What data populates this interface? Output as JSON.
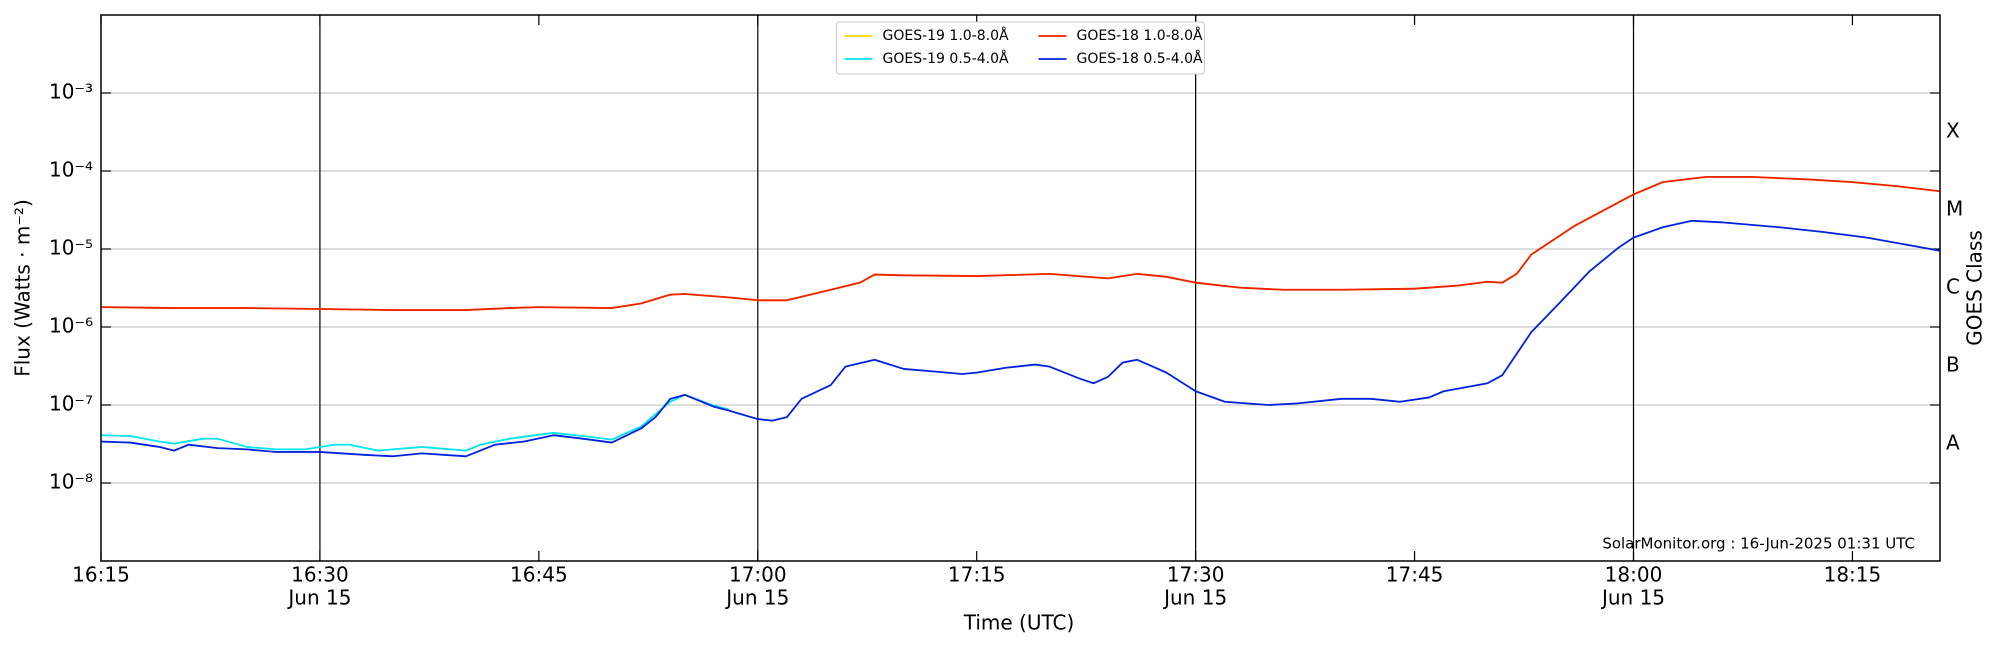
{
  "chart_data": {
    "type": "line",
    "xlabel": "Time (UTC)",
    "ylabel": "Flux (Watts · m⁻²)",
    "y2label": "GOES Class",
    "annotation": "SolarMonitor.org : 16-Jun-2025 01:31 UTC",
    "ylog": true,
    "grid": true,
    "legend": "upper center",
    "xlim": [
      "16:15",
      "18:21"
    ],
    "xticks": [
      "16:15",
      {
        "value": "16:30",
        "label": [
          "16:30",
          "Jun 15"
        ]
      },
      "16:45",
      {
        "value": "17:00",
        "label": [
          "17:00",
          "Jun 15"
        ]
      },
      "17:15",
      {
        "value": "17:30",
        "label": [
          "17:30",
          "Jun 15"
        ]
      },
      "17:45",
      {
        "value": "18:00",
        "label": [
          "18:00",
          "Jun 15"
        ]
      },
      "18:15"
    ],
    "vlines": [
      "16:30",
      "17:00",
      "17:30",
      "18:00"
    ],
    "ylim": [
      1e-09,
      0.01
    ],
    "yticks": [
      {
        "value": 0.001,
        "label": "10⁻³"
      },
      {
        "value": 0.0001,
        "label": "10⁻⁴"
      },
      {
        "value": 1e-05,
        "label": "10⁻⁵"
      },
      {
        "value": 1e-06,
        "label": "10⁻⁶"
      },
      {
        "value": 1e-07,
        "label": "10⁻⁷"
      },
      {
        "value": 1e-08,
        "label": "10⁻⁸"
      }
    ],
    "y2lim": [
      1e-09,
      0.01
    ],
    "y2ticks": [
      {
        "value": 0.0003162,
        "label": "X"
      },
      {
        "value": 3.162e-05,
        "label": "M"
      },
      {
        "value": 3.162e-06,
        "label": "C"
      },
      {
        "value": 3.162e-07,
        "label": "B"
      },
      {
        "value": 3.162e-08,
        "label": "A"
      }
    ],
    "series": [
      {
        "name": "GOES-19 1.0-8.0Å",
        "color": "#ffd700",
        "x": [
          "16:15",
          "16:20",
          "16:25",
          "16:30",
          "16:35",
          "16:40",
          "16:43",
          "16:45",
          "16:50",
          "16:52",
          "16:54",
          "16:55",
          "16:58",
          "17:00",
          "17:02",
          "17:05",
          "17:07",
          "17:08",
          "17:10",
          "17:15",
          "17:20",
          "17:24",
          "17:26",
          "17:28",
          "17:30",
          "17:33",
          "17:36",
          "17:40",
          "17:45",
          "17:48",
          "17:50",
          "17:51",
          "17:52",
          "17:53",
          "17:56",
          "18:00",
          "18:02",
          "18:05",
          "18:08",
          "18:12",
          "18:15",
          "18:18",
          "18:21"
        ],
        "values": [
          1.8e-06,
          1.75e-06,
          1.75e-06,
          1.7e-06,
          1.65e-06,
          1.65e-06,
          1.75e-06,
          1.8e-06,
          1.75e-06,
          2e-06,
          2.6e-06,
          2.65e-06,
          2.4e-06,
          2.2e-06,
          2.2e-06,
          3e-06,
          3.7e-06,
          4.7e-06,
          4.6e-06,
          4.5e-06,
          4.8e-06,
          4.2e-06,
          4.8e-06,
          4.4e-06,
          3.7e-06,
          3.2e-06,
          3e-06,
          3e-06,
          3.1e-06,
          3.4e-06,
          3.8e-06,
          3.7e-06,
          4.8e-06,
          8.5e-06,
          2e-05,
          5e-05,
          7.2e-05,
          8.4e-05,
          8.4e-05,
          7.8e-05,
          7.2e-05,
          6.4e-05,
          5.5e-05
        ]
      },
      {
        "name": "GOES-19 0.5-4.0Å",
        "color": "#00e5ee",
        "x": [
          "16:15",
          "16:17",
          "16:19",
          "16:20",
          "16:22",
          "16:23",
          "16:25",
          "16:27",
          "16:29",
          "16:31",
          "16:32",
          "16:34",
          "16:37",
          "16:40",
          "16:41",
          "16:43",
          "16:46",
          "16:48",
          "16:50",
          "16:52",
          "16:54",
          "16:55",
          "16:57",
          "16:58"
        ],
        "values": [
          4.1e-08,
          4e-08,
          3.4e-08,
          3.2e-08,
          3.7e-08,
          3.7e-08,
          2.9e-08,
          2.7e-08,
          2.7e-08,
          3.1e-08,
          3.1e-08,
          2.6e-08,
          2.9e-08,
          2.6e-08,
          3.1e-08,
          3.7e-08,
          4.4e-08,
          4e-08,
          3.6e-08,
          5.3e-08,
          1.1e-07,
          1.35e-07,
          9.8e-08,
          8.8e-08
        ]
      },
      {
        "name": "GOES-18 1.0-8.0Å",
        "color": "#f02000",
        "x": [
          "16:15",
          "16:20",
          "16:25",
          "16:30",
          "16:35",
          "16:40",
          "16:43",
          "16:45",
          "16:50",
          "16:52",
          "16:54",
          "16:55",
          "16:58",
          "17:00",
          "17:02",
          "17:05",
          "17:07",
          "17:08",
          "17:10",
          "17:15",
          "17:20",
          "17:24",
          "17:26",
          "17:28",
          "17:30",
          "17:33",
          "17:36",
          "17:40",
          "17:45",
          "17:48",
          "17:50",
          "17:51",
          "17:52",
          "17:53",
          "17:56",
          "18:00",
          "18:02",
          "18:05",
          "18:08",
          "18:12",
          "18:15",
          "18:18",
          "18:21"
        ],
        "values": [
          1.8e-06,
          1.75e-06,
          1.75e-06,
          1.7e-06,
          1.65e-06,
          1.65e-06,
          1.75e-06,
          1.8e-06,
          1.75e-06,
          2e-06,
          2.6e-06,
          2.65e-06,
          2.4e-06,
          2.2e-06,
          2.2e-06,
          3e-06,
          3.7e-06,
          4.7e-06,
          4.6e-06,
          4.5e-06,
          4.8e-06,
          4.2e-06,
          4.8e-06,
          4.4e-06,
          3.7e-06,
          3.2e-06,
          3e-06,
          3e-06,
          3.1e-06,
          3.4e-06,
          3.8e-06,
          3.7e-06,
          4.8e-06,
          8.5e-06,
          2e-05,
          5e-05,
          7.2e-05,
          8.4e-05,
          8.4e-05,
          7.8e-05,
          7.2e-05,
          6.4e-05,
          5.5e-05
        ]
      },
      {
        "name": "GOES-18 0.5-4.0Å",
        "color": "#0022dd",
        "x": [
          "16:15",
          "16:17",
          "16:19",
          "16:20",
          "16:21",
          "16:23",
          "16:25",
          "16:27",
          "16:30",
          "16:33",
          "16:35",
          "16:37",
          "16:40",
          "16:42",
          "16:44",
          "16:46",
          "16:48",
          "16:50",
          "16:52",
          "16:53",
          "16:54",
          "16:55",
          "16:57",
          "16:58",
          "17:00",
          "17:01",
          "17:02",
          "17:03",
          "17:05",
          "17:06",
          "17:08",
          "17:10",
          "17:12",
          "17:14",
          "17:15",
          "17:17",
          "17:19",
          "17:20",
          "17:22",
          "17:23",
          "17:24",
          "17:25",
          "17:26",
          "17:28",
          "17:30",
          "17:32",
          "17:35",
          "17:37",
          "17:40",
          "17:42",
          "17:44",
          "17:46",
          "17:47",
          "17:50",
          "17:51",
          "17:53",
          "17:55",
          "17:57",
          "17:59",
          "18:00",
          "18:02",
          "18:04",
          "18:06",
          "18:10",
          "18:13",
          "18:16",
          "18:21"
        ],
        "values": [
          3.4e-08,
          3.3e-08,
          2.9e-08,
          2.6e-08,
          3.1e-08,
          2.8e-08,
          2.7e-08,
          2.5e-08,
          2.5e-08,
          2.3e-08,
          2.2e-08,
          2.4e-08,
          2.2e-08,
          3.1e-08,
          3.4e-08,
          4.1e-08,
          3.7e-08,
          3.3e-08,
          5e-08,
          7e-08,
          1.2e-07,
          1.35e-07,
          9.5e-08,
          8.5e-08,
          6.6e-08,
          6.3e-08,
          7e-08,
          1.2e-07,
          1.8e-07,
          3.1e-07,
          3.8e-07,
          2.9e-07,
          2.7e-07,
          2.5e-07,
          2.6e-07,
          3e-07,
          3.3e-07,
          3.1e-07,
          2.2e-07,
          1.9e-07,
          2.3e-07,
          3.5e-07,
          3.8e-07,
          2.6e-07,
          1.5e-07,
          1.1e-07,
          1e-07,
          1.05e-07,
          1.2e-07,
          1.2e-07,
          1.1e-07,
          1.25e-07,
          1.5e-07,
          1.9e-07,
          2.4e-07,
          8.6e-07,
          2.1e-06,
          5.2e-06,
          1.05e-05,
          1.4e-05,
          1.9e-05,
          2.3e-05,
          2.2e-05,
          1.9e-05,
          1.65e-05,
          1.4e-05,
          9.5e-06
        ]
      }
    ]
  }
}
